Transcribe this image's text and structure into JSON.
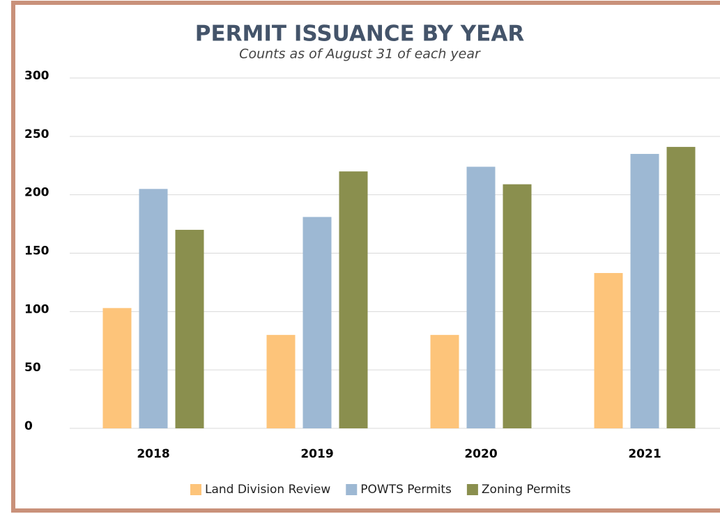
{
  "chart_data": {
    "type": "bar",
    "title": "PERMIT ISSUANCE BY YEAR",
    "subtitle": "Counts as of August 31 of each year",
    "categories": [
      "2018",
      "2019",
      "2020",
      "2021"
    ],
    "series": [
      {
        "name": "Land Division Review",
        "color": "#fdc47a",
        "values": [
          103,
          80,
          80,
          133
        ]
      },
      {
        "name": "POWTS Permits",
        "color": "#9db8d3",
        "values": [
          205,
          181,
          224,
          235
        ]
      },
      {
        "name": "Zoning Permits",
        "color": "#8a8f4e",
        "values": [
          170,
          220,
          209,
          241
        ]
      }
    ],
    "ylim": [
      0,
      300
    ],
    "yticks": [
      0,
      50,
      100,
      150,
      200,
      250,
      300
    ],
    "grid": true,
    "legend": "bottom"
  }
}
